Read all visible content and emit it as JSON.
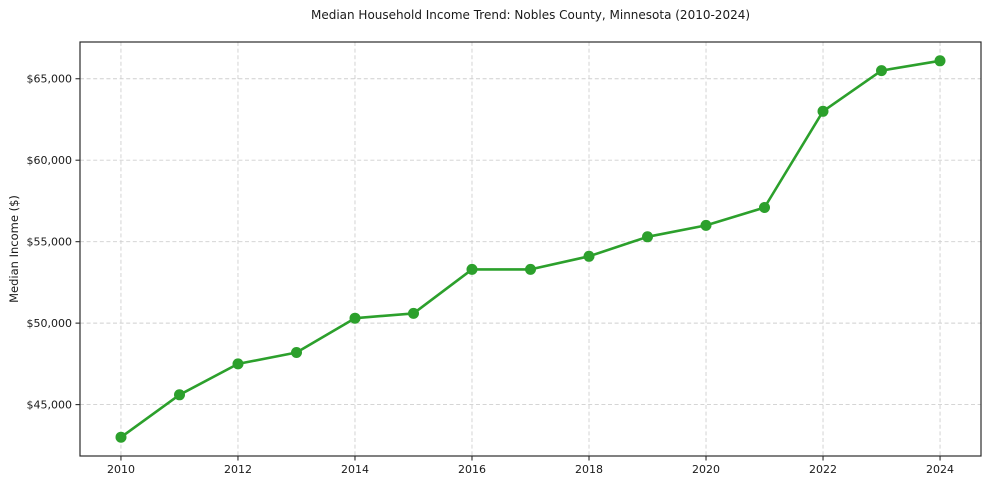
{
  "chart_data": {
    "type": "line",
    "title": "Median Household Income Trend: Nobles County, Minnesota (2010-2024)",
    "xlabel": "",
    "ylabel": "Median Income ($)",
    "x": [
      2010,
      2011,
      2012,
      2013,
      2014,
      2015,
      2016,
      2017,
      2018,
      2019,
      2020,
      2021,
      2022,
      2023,
      2024
    ],
    "series": [
      {
        "name": "Median Household Income",
        "values": [
          43000,
          45600,
          47500,
          48200,
          50300,
          50600,
          53300,
          53300,
          54100,
          55300,
          56000,
          57100,
          63000,
          65500,
          66100
        ]
      }
    ],
    "xticks": {
      "values": [
        2010,
        2012,
        2014,
        2016,
        2018,
        2020,
        2022,
        2024
      ],
      "labels": [
        "2010",
        "2012",
        "2014",
        "2016",
        "2018",
        "2020",
        "2022",
        "2024"
      ]
    },
    "yticks": {
      "values": [
        45000,
        50000,
        55000,
        60000,
        65000
      ],
      "labels": [
        "$45,000",
        "$50,000",
        "$55,000",
        "$60,000",
        "$65,000"
      ]
    },
    "xlim": [
      2009.3,
      2024.7
    ],
    "ylim": [
      41845,
      67255
    ],
    "grid": true,
    "grid_style": "dashed",
    "legend_position": "none",
    "marker": "circle",
    "colors": {
      "line": "#2ca02c",
      "marker": "#2ca02c",
      "grid": "#cfcfcf",
      "axis_border": "#2b2b2b",
      "tick_text": "#1a1a1a",
      "background": "#ffffff"
    }
  }
}
